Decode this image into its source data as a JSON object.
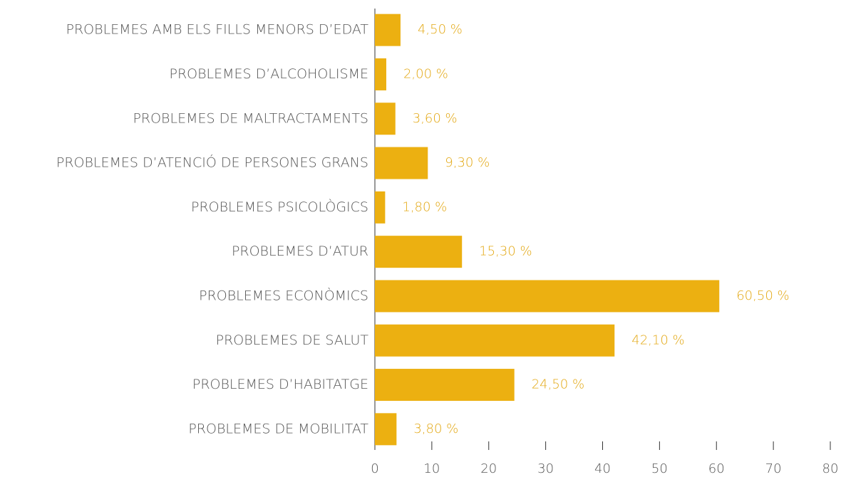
{
  "chart_data": {
    "type": "hbar",
    "categories": [
      "PROBLEMES AMB ELS FILLS MENORS D’EDAT",
      "PROBLEMES D’ALCOHOLISME",
      "PROBLEMES DE MALTRACTAMENTS",
      "PROBLEMES D’ATENCIÓ DE PERSONES GRANS",
      "PROBLEMES PSICOLÒGICS",
      "PROBLEMES D’ATUR",
      "PROBLEMES ECONÒMICS",
      "PROBLEMES DE SALUT",
      "PROBLEMES D’HABITATGE",
      "PROBLEMES DE MOBILITAT"
    ],
    "values": [
      4.5,
      2.0,
      3.6,
      9.3,
      1.8,
      15.3,
      60.5,
      42.1,
      24.5,
      3.8
    ],
    "value_labels": [
      "4,50 %",
      "2,00 %",
      "3,60 %",
      "9,30 %",
      "1,80 %",
      "15,30 %",
      "60,50 %",
      "42,10 %",
      "24,50 %",
      "3,80 %"
    ],
    "color": "#ecb011",
    "xlim": [
      0,
      80
    ],
    "xticks": [
      0,
      10,
      20,
      30,
      40,
      50,
      60,
      70,
      80
    ]
  }
}
